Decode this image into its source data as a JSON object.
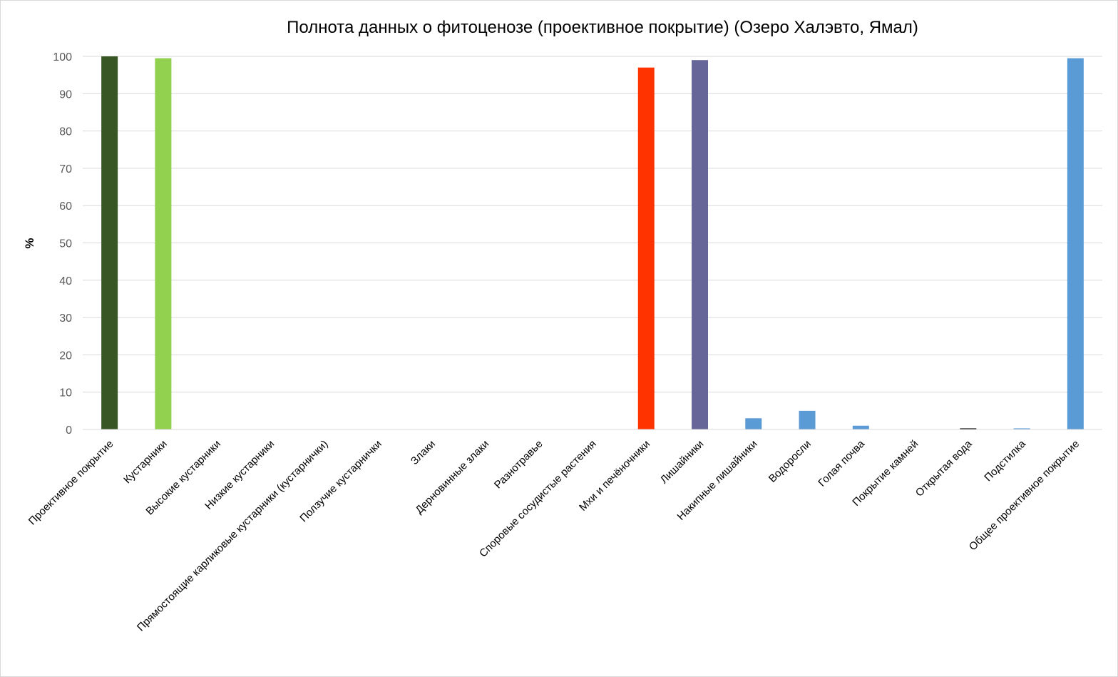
{
  "chart_data": {
    "type": "bar",
    "title": "Полнота данных о фитоценозе (проективное покрытие) (Озеро Халэвто, Ямал)",
    "xlabel": "",
    "ylabel": "%",
    "ylim": [
      0,
      100
    ],
    "yticks": [
      0,
      10,
      20,
      30,
      40,
      50,
      60,
      70,
      80,
      90,
      100
    ],
    "grid": true,
    "legend": "none",
    "categories": [
      "Проективное покрытие",
      "Кустарники",
      "Высокие кустарники",
      "Низкие кустарники",
      "Прямостоящие карликовые кустарники (кустарнички)",
      "Ползучие кустарнички",
      "Злаки",
      "Дерновинные злаки",
      "Разнотравье",
      "Споровые сосудистые растения",
      "Мхи и печёночники",
      "Лишайники",
      "Накипные лишайники",
      "Водоросли",
      "Голая почва",
      "Покрытие камней",
      "Открытая вода",
      "Подстилка",
      "Общее проективное покрытие"
    ],
    "values": [
      100,
      99.5,
      0,
      0,
      0,
      0,
      0,
      0,
      0,
      0,
      97,
      99,
      3,
      5,
      1,
      0,
      0.3,
      0.3,
      99.5
    ],
    "colors": [
      "#375623",
      "#92d050",
      "#5b9bd5",
      "#5b9bd5",
      "#5b9bd5",
      "#5b9bd5",
      "#5b9bd5",
      "#5b9bd5",
      "#5b9bd5",
      "#5b9bd5",
      "#ff3300",
      "#666699",
      "#5b9bd5",
      "#5b9bd5",
      "#5b9bd5",
      "#5b9bd5",
      "#000000",
      "#5b9bd5",
      "#5b9bd5"
    ]
  }
}
